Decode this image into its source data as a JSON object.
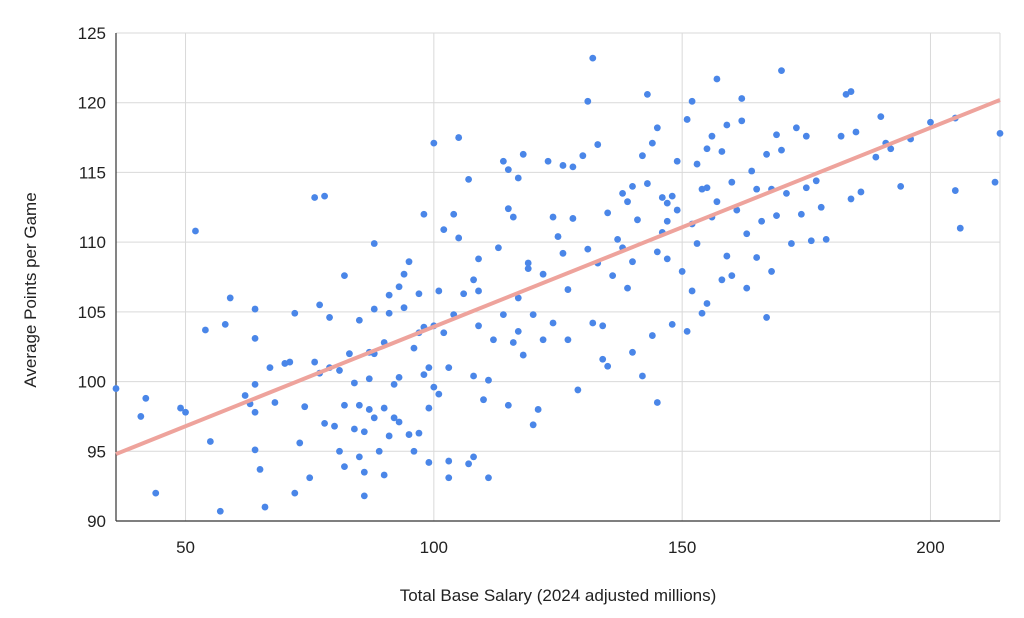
{
  "chart_data": {
    "type": "scatter",
    "title": "",
    "xlabel": "Total Base Salary (2024 adjusted millions)",
    "ylabel": "Average Points per Game",
    "xlim": [
      36,
      214
    ],
    "ylim": [
      90,
      125
    ],
    "x_ticks": [
      50,
      100,
      150,
      200
    ],
    "y_ticks": [
      90,
      95,
      100,
      105,
      110,
      115,
      120,
      125
    ],
    "grid": true,
    "legend": "none",
    "point_color": "#4a86e8",
    "trendline": {
      "color": "#eea39c",
      "start": [
        36,
        94.8
      ],
      "end": [
        214,
        120.2
      ]
    },
    "series": [
      {
        "points": [
          [
            36,
            99.5
          ],
          [
            41,
            97.5
          ],
          [
            42,
            98.8
          ],
          [
            44,
            92
          ],
          [
            49,
            98.1
          ],
          [
            50,
            97.8
          ],
          [
            52,
            110.8
          ],
          [
            54,
            103.7
          ],
          [
            55,
            95.7
          ],
          [
            57,
            90.7
          ],
          [
            58,
            104.1
          ],
          [
            59,
            106
          ],
          [
            62,
            99
          ],
          [
            63,
            98.4
          ],
          [
            64,
            95.1
          ],
          [
            64,
            105.2
          ],
          [
            64,
            103.1
          ],
          [
            64,
            97.8
          ],
          [
            64,
            99.8
          ],
          [
            65,
            93.7
          ],
          [
            66,
            91
          ],
          [
            67,
            101
          ],
          [
            68,
            98.5
          ],
          [
            70,
            101.3
          ],
          [
            71,
            101.4
          ],
          [
            72,
            104.9
          ],
          [
            72,
            92
          ],
          [
            73,
            95.6
          ],
          [
            74,
            98.2
          ],
          [
            75,
            93.1
          ],
          [
            76,
            101.4
          ],
          [
            76,
            113.2
          ],
          [
            77,
            105.5
          ],
          [
            78,
            113.3
          ],
          [
            78,
            97
          ],
          [
            79,
            101
          ],
          [
            79,
            104.6
          ],
          [
            80,
            96.8
          ],
          [
            81,
            95
          ],
          [
            81,
            100.8
          ],
          [
            82,
            107.6
          ],
          [
            82,
            98.3
          ],
          [
            82,
            93.9
          ],
          [
            83,
            102
          ],
          [
            84,
            99.9
          ],
          [
            84,
            96.6
          ],
          [
            85,
            94.6
          ],
          [
            85,
            104.4
          ],
          [
            85,
            98.3
          ],
          [
            86,
            96.4
          ],
          [
            86,
            93.5
          ],
          [
            86,
            91.8
          ],
          [
            87,
            98
          ],
          [
            87,
            100.2
          ],
          [
            88,
            105.2
          ],
          [
            88,
            102
          ],
          [
            88,
            109.9
          ],
          [
            88,
            97.4
          ],
          [
            89,
            95
          ],
          [
            90,
            93.3
          ],
          [
            90,
            98.1
          ],
          [
            90,
            102.8
          ],
          [
            91,
            96.1
          ],
          [
            91,
            106.2
          ],
          [
            91,
            104.9
          ],
          [
            92,
            99.8
          ],
          [
            92,
            97.4
          ],
          [
            93,
            97.1
          ],
          [
            93,
            100.3
          ],
          [
            93,
            106.8
          ],
          [
            94,
            105.3
          ],
          [
            94,
            107.7
          ],
          [
            95,
            108.6
          ],
          [
            95,
            96.2
          ],
          [
            96,
            95
          ],
          [
            96,
            102.4
          ],
          [
            97,
            96.3
          ],
          [
            97,
            106.3
          ],
          [
            98,
            112
          ],
          [
            98,
            100.5
          ],
          [
            98,
            103.9
          ],
          [
            99,
            94.2
          ],
          [
            99,
            98.1
          ],
          [
            99,
            101
          ],
          [
            100,
            117.1
          ],
          [
            100,
            99.6
          ],
          [
            100,
            104
          ],
          [
            101,
            106.5
          ],
          [
            101,
            99.1
          ],
          [
            102,
            103.5
          ],
          [
            102,
            110.9
          ],
          [
            103,
            94.3
          ],
          [
            103,
            93.1
          ],
          [
            103,
            101
          ],
          [
            104,
            104.8
          ],
          [
            104,
            112
          ],
          [
            105,
            110.3
          ],
          [
            105,
            117.5
          ],
          [
            106,
            106.3
          ],
          [
            107,
            114.5
          ],
          [
            107,
            94.1
          ],
          [
            108,
            100.4
          ],
          [
            108,
            107.3
          ],
          [
            108,
            94.6
          ],
          [
            109,
            104
          ],
          [
            109,
            108.8
          ],
          [
            110,
            98.7
          ],
          [
            111,
            100.1
          ],
          [
            111,
            93.1
          ],
          [
            112,
            103
          ],
          [
            113,
            109.6
          ],
          [
            114,
            115.8
          ],
          [
            114,
            104.8
          ],
          [
            115,
            115.2
          ],
          [
            115,
            98.3
          ],
          [
            115,
            112.4
          ],
          [
            116,
            111.8
          ],
          [
            116,
            102.8
          ],
          [
            117,
            114.6
          ],
          [
            117,
            103.6
          ],
          [
            117,
            106
          ],
          [
            118,
            116.3
          ],
          [
            118,
            101.9
          ],
          [
            119,
            108.5
          ],
          [
            120,
            104.8
          ],
          [
            120,
            96.9
          ],
          [
            121,
            98
          ],
          [
            122,
            103
          ],
          [
            122,
            107.7
          ],
          [
            123,
            115.8
          ],
          [
            124,
            104.2
          ],
          [
            124,
            111.8
          ],
          [
            125,
            110.4
          ],
          [
            126,
            115.5
          ],
          [
            127,
            106.6
          ],
          [
            127,
            103
          ],
          [
            128,
            111.7
          ],
          [
            128,
            115.4
          ],
          [
            129,
            99.4
          ],
          [
            130,
            116.2
          ],
          [
            131,
            120.1
          ],
          [
            131,
            109.5
          ],
          [
            132,
            123.2
          ],
          [
            132,
            104.2
          ],
          [
            133,
            117
          ],
          [
            133,
            108.5
          ],
          [
            134,
            101.6
          ],
          [
            134,
            104
          ],
          [
            135,
            112.1
          ],
          [
            135,
            101.1
          ],
          [
            136,
            107.6
          ],
          [
            137,
            110.2
          ],
          [
            138,
            113.5
          ],
          [
            139,
            106.7
          ],
          [
            139,
            112.9
          ],
          [
            140,
            114
          ],
          [
            140,
            108.6
          ],
          [
            140,
            102.1
          ],
          [
            141,
            111.6
          ],
          [
            142,
            116.2
          ],
          [
            142,
            100.4
          ],
          [
            143,
            120.6
          ],
          [
            143,
            114.2
          ],
          [
            144,
            117.1
          ],
          [
            144,
            103.3
          ],
          [
            145,
            118.2
          ],
          [
            145,
            109.3
          ],
          [
            145,
            98.5
          ],
          [
            146,
            113.2
          ],
          [
            146,
            110.7
          ],
          [
            147,
            112.8
          ],
          [
            147,
            108.8
          ],
          [
            148,
            104.1
          ],
          [
            148,
            113.3
          ],
          [
            149,
            115.8
          ],
          [
            149,
            112.3
          ],
          [
            150,
            107.9
          ],
          [
            151,
            103.6
          ],
          [
            151,
            118.8
          ],
          [
            152,
            106.5
          ],
          [
            152,
            120.1
          ],
          [
            152,
            111.3
          ],
          [
            153,
            115.6
          ],
          [
            153,
            109.9
          ],
          [
            154,
            113.8
          ],
          [
            154,
            104.9
          ],
          [
            155,
            116.7
          ],
          [
            155,
            105.6
          ],
          [
            156,
            117.6
          ],
          [
            156,
            111.8
          ],
          [
            157,
            121.7
          ],
          [
            157,
            112.9
          ],
          [
            158,
            107.3
          ],
          [
            158,
            116.5
          ],
          [
            159,
            109
          ],
          [
            159,
            118.4
          ],
          [
            160,
            114.3
          ],
          [
            160,
            107.6
          ],
          [
            161,
            112.3
          ],
          [
            162,
            120.3
          ],
          [
            162,
            118.7
          ],
          [
            163,
            110.6
          ],
          [
            163,
            106.7
          ],
          [
            164,
            115.1
          ],
          [
            165,
            113.8
          ],
          [
            165,
            108.9
          ],
          [
            166,
            111.5
          ],
          [
            167,
            116.3
          ],
          [
            167,
            104.6
          ],
          [
            168,
            113.8
          ],
          [
            168,
            107.9
          ],
          [
            169,
            117.7
          ],
          [
            169,
            111.9
          ],
          [
            170,
            122.3
          ],
          [
            170,
            116.6
          ],
          [
            171,
            113.5
          ],
          [
            172,
            109.9
          ],
          [
            173,
            118.2
          ],
          [
            174,
            112
          ],
          [
            175,
            117.6
          ],
          [
            175,
            113.9
          ],
          [
            176,
            110.1
          ],
          [
            177,
            114.4
          ],
          [
            178,
            112.5
          ],
          [
            179,
            110.2
          ],
          [
            182,
            117.6
          ],
          [
            183,
            120.6
          ],
          [
            184,
            120.8
          ],
          [
            184,
            113.1
          ],
          [
            185,
            117.9
          ],
          [
            186,
            113.6
          ],
          [
            189,
            116.1
          ],
          [
            190,
            119
          ],
          [
            191,
            117.1
          ],
          [
            192,
            116.7
          ],
          [
            194,
            114
          ],
          [
            200,
            118.6
          ],
          [
            205,
            118.9
          ],
          [
            205,
            113.7
          ],
          [
            206,
            111
          ],
          [
            213,
            114.3
          ],
          [
            214,
            117.8
          ],
          [
            196,
            117.4
          ],
          [
            155,
            113.9
          ],
          [
            147,
            111.5
          ],
          [
            138,
            109.6
          ],
          [
            126,
            109.2
          ],
          [
            119,
            108.1
          ],
          [
            109,
            106.5
          ],
          [
            97,
            103.5
          ],
          [
            87,
            102.1
          ],
          [
            77,
            100.6
          ]
        ]
      }
    ]
  }
}
